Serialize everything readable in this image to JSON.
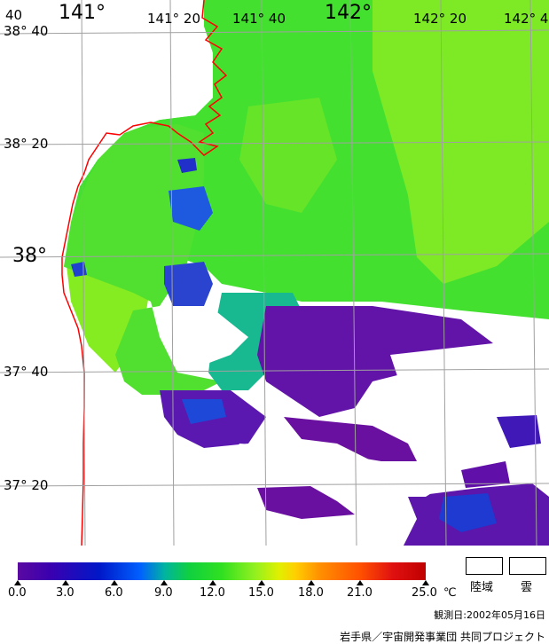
{
  "map": {
    "lon_labels": [
      {
        "text": "141°",
        "size": "big"
      },
      {
        "text": "141° 20",
        "size": "small"
      },
      {
        "text": "141° 40",
        "size": "small"
      },
      {
        "text": "142°",
        "size": "big"
      },
      {
        "text": "142° 20",
        "size": "small"
      },
      {
        "text": "142° 4",
        "size": "small"
      }
    ],
    "lat_labels": [
      {
        "text": "38° 40",
        "size": "small"
      },
      {
        "text": "38° 20",
        "size": "small"
      },
      {
        "text": "38°",
        "size": "big"
      },
      {
        "text": "37° 40",
        "size": "small"
      },
      {
        "text": "37° 20",
        "size": "small"
      }
    ],
    "corner_label": "40",
    "colors": {
      "land": "#ffffff",
      "coastline": "#ff0000",
      "grid": "#a0a0a0",
      "sea_green": "#44e030",
      "sea_lime": "#88ee22",
      "sea_teal": "#10c080",
      "sea_blue": "#1840d8",
      "sea_purple": "#6010a8",
      "cloud": "#ffffff"
    }
  },
  "legend": {
    "ticks": [
      "0.0",
      "3.0",
      "6.0",
      "9.0",
      "12.0",
      "15.0",
      "18.0",
      "21.0",
      "25.0"
    ],
    "unit": "℃",
    "land_label": "陸域",
    "cloud_label": "雲",
    "observation_date": "観測日:2002年05月16日",
    "credit": "岩手県／宇宙開発事業団 共同プロジェクト"
  }
}
